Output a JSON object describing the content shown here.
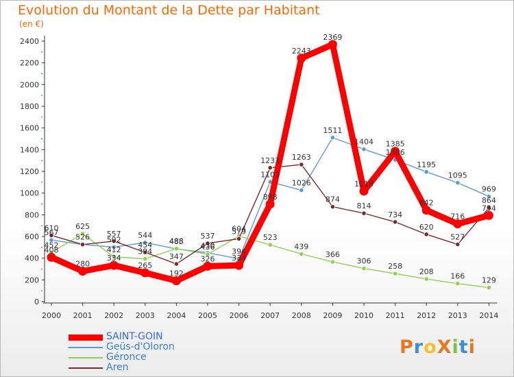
{
  "title": "Evolution du Montant de la Dette par Habitant",
  "subtitle": "(en €)",
  "chart_data": {
    "type": "line",
    "x": [
      "2000",
      "2001",
      "2002",
      "2003",
      "2004",
      "2005",
      "2006",
      "2007",
      "2008",
      "2009",
      "2010",
      "2011",
      "2012",
      "2013",
      "2014"
    ],
    "ylim": [
      0,
      2400
    ],
    "yticks": [
      0,
      200,
      400,
      600,
      800,
      1000,
      1200,
      1400,
      1600,
      1800,
      2000,
      2200,
      2400
    ],
    "grid": false,
    "legend_position": "bottom-left",
    "series": [
      {
        "name": "SAINT-GOIN",
        "color": "#ff0000",
        "values": [
          408,
          280,
          334,
          265,
          192,
          326,
          334,
          898,
          2243,
          2369,
          1018,
          1385,
          842,
          716,
          794
        ]
      },
      {
        "name": "Geüs-d'Oloron",
        "color": "#5b9bd5",
        "values": [
          567,
          526,
          502,
          544,
          485,
          450,
          394,
          1103,
          1026,
          1511,
          1404,
          1306,
          1195,
          1095,
          969
        ]
      },
      {
        "name": "Géronce",
        "color": "#8fd14f",
        "values": [
          452,
          625,
          412,
          394,
          488,
          436,
          604,
          523,
          439,
          366,
          306,
          258,
          208,
          166,
          129
        ]
      },
      {
        "name": "Aren",
        "color": "#7b2a2a",
        "values": [
          610,
          526,
          557,
          454,
          347,
          537,
          579,
          1233,
          1263,
          874,
          814,
          734,
          620,
          527,
          864
        ]
      }
    ],
    "data_labels": [
      {
        "text": "610",
        "x": "2000",
        "y": 610
      },
      {
        "text": "567",
        "x": "2000",
        "y": 567
      },
      {
        "text": "452",
        "x": "2000",
        "y": 452
      },
      {
        "text": "408",
        "x": "2000",
        "y": 408
      },
      {
        "text": "625",
        "x": "2001",
        "y": 625
      },
      {
        "text": "526",
        "x": "2001",
        "y": 526
      },
      {
        "text": "280",
        "x": "2001",
        "y": 280
      },
      {
        "text": "557",
        "x": "2002",
        "y": 557
      },
      {
        "text": "502",
        "x": "2002",
        "y": 502
      },
      {
        "text": "412",
        "x": "2002",
        "y": 412
      },
      {
        "text": "334",
        "x": "2002",
        "y": 334
      },
      {
        "text": "544",
        "x": "2003",
        "y": 544
      },
      {
        "text": "454",
        "x": "2003",
        "y": 454
      },
      {
        "text": "394",
        "x": "2003",
        "y": 394
      },
      {
        "text": "265",
        "x": "2003",
        "y": 265
      },
      {
        "text": "488",
        "x": "2004",
        "y": 488
      },
      {
        "text": "485",
        "x": "2004",
        "y": 485
      },
      {
        "text": "347",
        "x": "2004",
        "y": 347
      },
      {
        "text": "192",
        "x": "2004",
        "y": 192
      },
      {
        "text": "537",
        "x": "2005",
        "y": 537
      },
      {
        "text": "450",
        "x": "2005",
        "y": 450
      },
      {
        "text": "436",
        "x": "2005",
        "y": 436
      },
      {
        "text": "326",
        "x": "2005",
        "y": 326
      },
      {
        "text": "604",
        "x": "2006",
        "y": 604
      },
      {
        "text": "579",
        "x": "2006",
        "y": 579
      },
      {
        "text": "394",
        "x": "2006",
        "y": 394
      },
      {
        "text": "334",
        "x": "2006",
        "y": 334
      },
      {
        "text": "1233",
        "x": "2007",
        "y": 1233
      },
      {
        "text": "1103",
        "x": "2007",
        "y": 1103
      },
      {
        "text": "898",
        "x": "2007",
        "y": 898
      },
      {
        "text": "523",
        "x": "2007",
        "y": 523
      },
      {
        "text": "2243",
        "x": "2008",
        "y": 2243
      },
      {
        "text": "1263",
        "x": "2008",
        "y": 1263
      },
      {
        "text": "1026",
        "x": "2008",
        "y": 1026
      },
      {
        "text": "439",
        "x": "2008",
        "y": 439
      },
      {
        "text": "2369",
        "x": "2009",
        "y": 2369
      },
      {
        "text": "1511",
        "x": "2009",
        "y": 1511
      },
      {
        "text": "874",
        "x": "2009",
        "y": 874
      },
      {
        "text": "366",
        "x": "2009",
        "y": 366
      },
      {
        "text": "1404",
        "x": "2010",
        "y": 1404
      },
      {
        "text": "1018",
        "x": "2010",
        "y": 1018
      },
      {
        "text": "814",
        "x": "2010",
        "y": 814
      },
      {
        "text": "306",
        "x": "2010",
        "y": 306
      },
      {
        "text": "1385",
        "x": "2011",
        "y": 1385
      },
      {
        "text": "1306",
        "x": "2011",
        "y": 1306
      },
      {
        "text": "734",
        "x": "2011",
        "y": 734
      },
      {
        "text": "258",
        "x": "2011",
        "y": 258
      },
      {
        "text": "1195",
        "x": "2012",
        "y": 1195
      },
      {
        "text": "842",
        "x": "2012",
        "y": 842
      },
      {
        "text": "620",
        "x": "2012",
        "y": 620
      },
      {
        "text": "208",
        "x": "2012",
        "y": 208
      },
      {
        "text": "1095",
        "x": "2013",
        "y": 1095
      },
      {
        "text": "716",
        "x": "2013",
        "y": 716
      },
      {
        "text": "527",
        "x": "2013",
        "y": 527
      },
      {
        "text": "166",
        "x": "2013",
        "y": 166
      },
      {
        "text": "969",
        "x": "2014",
        "y": 969
      },
      {
        "text": "864",
        "x": "2014",
        "y": 864
      },
      {
        "text": "794",
        "x": "2014",
        "y": 794
      },
      {
        "text": "129",
        "x": "2014",
        "y": 129
      }
    ]
  },
  "logo": {
    "text": "ProXiti",
    "letters": [
      "P",
      "r",
      "o",
      "X",
      "i",
      "t",
      "i"
    ],
    "colors": [
      "#e87722",
      "#3a8fd6",
      "#f2c12e",
      "#e87722",
      "#7cc242",
      "#3a8fd6",
      "#e87722"
    ]
  }
}
